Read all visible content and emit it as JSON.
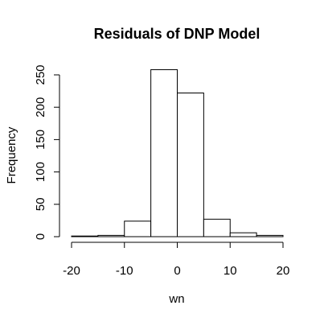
{
  "chart_data": {
    "type": "bar",
    "title": "Residuals of DNP Model",
    "xlabel": "wn",
    "ylabel": "Frequency",
    "xlim": [
      -20,
      20
    ],
    "ylim": [
      0,
      250
    ],
    "x_ticks": [
      -20,
      -10,
      0,
      10,
      20
    ],
    "x_tick_labels": [
      "-20",
      "-10",
      "0",
      "10",
      "20"
    ],
    "y_ticks": [
      0,
      50,
      100,
      150,
      200,
      250
    ],
    "y_tick_labels": [
      "0",
      "50",
      "100",
      "150",
      "200",
      "250"
    ],
    "bins": [
      {
        "start": -20,
        "end": -15,
        "count": 1
      },
      {
        "start": -15,
        "end": -10,
        "count": 2
      },
      {
        "start": -10,
        "end": -5,
        "count": 24
      },
      {
        "start": -5,
        "end": 0,
        "count": 258
      },
      {
        "start": 0,
        "end": 5,
        "count": 222
      },
      {
        "start": 5,
        "end": 10,
        "count": 27
      },
      {
        "start": 10,
        "end": 15,
        "count": 6
      },
      {
        "start": 15,
        "end": 20,
        "count": 2
      }
    ],
    "grid": false
  }
}
